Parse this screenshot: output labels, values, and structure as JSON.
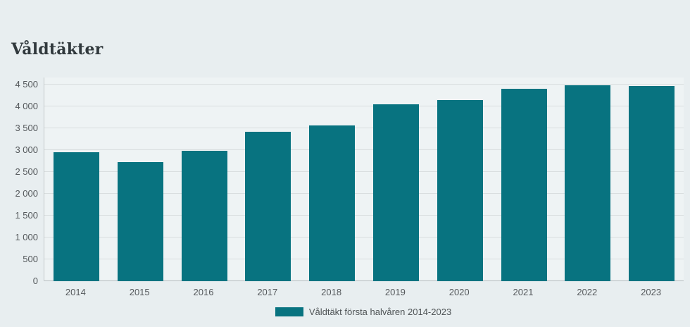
{
  "chart_data": {
    "type": "bar",
    "title": "Våldtäkter",
    "categories": [
      "2014",
      "2015",
      "2016",
      "2017",
      "2018",
      "2019",
      "2020",
      "2021",
      "2022",
      "2023"
    ],
    "values": [
      2950,
      2720,
      2990,
      3420,
      3570,
      4050,
      4140,
      4400,
      4480,
      4460
    ],
    "series_name": "Våldtäkt första halvåren 2014-2023",
    "legend": "Våldtäkt första halvåren 2014-2023",
    "legend_position": "bottom-center",
    "xlabel": "",
    "ylabel": "",
    "ylim": [
      0,
      4500
    ],
    "yticks": [
      0,
      500,
      1000,
      1500,
      2000,
      2500,
      3000,
      3500,
      4000,
      4500
    ],
    "ytick_labels": [
      "0",
      "500",
      "1 000",
      "1 500",
      "2 000",
      "2 500",
      "3 000",
      "3 500",
      "4 000",
      "4 500"
    ],
    "grid": "horizontal",
    "bar_color": "#087380",
    "plot_background": "#eef3f4",
    "page_background": "#e8eef0",
    "text_color": "#55595c"
  }
}
